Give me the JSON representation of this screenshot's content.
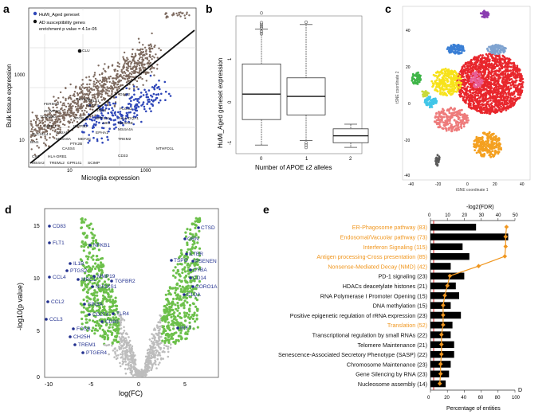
{
  "panels": {
    "a": {
      "letter": "a",
      "legend": [
        "HuMi_Aged geneset",
        "AD susceptibility genes",
        "enrichment p value = 4.1e-05"
      ],
      "ylabel": "Bulk tissue expression",
      "xlabel": "Microglia expression",
      "xticks": [
        "10",
        "1000"
      ],
      "yticks": [
        "1000",
        "10"
      ],
      "genes": [
        "CLU",
        "FERMT2",
        "ZCWPW1",
        "TOMM40",
        "PICALM",
        "CELF1",
        "ABCA7",
        "SLC24A4",
        "BIN1",
        "SORL1",
        "MS4A6A",
        "CR1",
        "HLA-DRB1",
        "CASS4",
        "CD2AP",
        "MEF2C",
        "INPP5D",
        "APOE",
        "PTK2B",
        "MS4A4E",
        "MS4A2",
        "TREML2",
        "GPR141",
        "SCIMP",
        "CD33",
        "TREM2",
        "MS4A4A",
        "HLA-DQA1",
        "NME8",
        "EPHA1",
        "MTHFD1L",
        "SPPL2A",
        "ABI3",
        "PLCG2",
        "DSG2"
      ],
      "colors": {
        "background": "#7d6a5f",
        "highlight": "#2e46b8",
        "ad": "#111111"
      }
    },
    "b": {
      "letter": "b",
      "ylabel": "HuMi_Aged geneset expression",
      "xlabel": "Number of APOE ε2 alleles",
      "yticks": [
        "1",
        "0",
        "-1"
      ],
      "categories": [
        "0",
        "1",
        "2"
      ]
    },
    "c": {
      "letter": "c",
      "xlabel": "tSNE coordinate 1",
      "ylabel": "tSNE coordinate 2",
      "xticks": [
        "-40",
        "-20",
        "0",
        "20",
        "40"
      ],
      "yticks": [
        "40",
        "20",
        "0",
        "-20",
        "-40"
      ],
      "clusters": [
        {
          "color": "#e8262c"
        },
        {
          "color": "#f4a020"
        },
        {
          "color": "#f7e21a"
        },
        {
          "color": "#3fb548"
        },
        {
          "color": "#3a7fd5"
        },
        {
          "color": "#7fa3d0"
        },
        {
          "color": "#e85f97"
        },
        {
          "color": "#ee7b7b"
        },
        {
          "color": "#41c6e8"
        },
        {
          "color": "#8a3db0"
        },
        {
          "color": "#c9d93b"
        },
        {
          "color": "#5a5a5a"
        }
      ]
    },
    "d": {
      "letter": "d",
      "ylabel": "-log10(p value)",
      "xlabel": "log(FC)",
      "xticks": [
        "-10",
        "-5",
        "0",
        "5"
      ],
      "yticks": [
        "15",
        "10",
        "5",
        "0"
      ],
      "labels_left": [
        "CD83",
        "FLT1",
        "NFKB1",
        "IL1B",
        "PTGS2",
        "CCL4",
        "MRC1",
        "MMP19",
        "TGFBR2",
        "NUCKS1",
        "CCL2",
        "CCL3",
        "SIN3A",
        "CD274",
        "TLR4",
        "CD80",
        "FOSB",
        "CH25H",
        "TREM1",
        "PTGER4"
      ],
      "labels_right": [
        "CTSD",
        "GRN",
        "ILTBR",
        "TSPO",
        "PSENEN",
        "CYBA",
        "CD14",
        "CORO1A",
        "C1QA",
        "IRF7"
      ]
    },
    "e": {
      "letter": "e",
      "top_axis_label": "-log2(FDR)",
      "bottom_axis_label": "Percentage of entities",
      "top_ticks": [
        "0",
        "10",
        "20",
        "30",
        "40",
        "50"
      ],
      "bottom_ticks": [
        "0",
        "20",
        "40",
        "60",
        "80",
        "100"
      ],
      "corner_mark": "D"
    }
  },
  "chart_data": [
    {
      "panel": "b",
      "type": "box",
      "categories": [
        "0",
        "1",
        "2"
      ],
      "xlabel": "Number of APOE ε2 alleles",
      "ylabel": "HuMi_Aged geneset expression",
      "boxes": [
        {
          "category": "0",
          "min": -1.0,
          "q1": -0.45,
          "median": 0.1,
          "q3": 0.75,
          "max": 1.5
        },
        {
          "category": "1",
          "min": -0.9,
          "q1": -0.35,
          "median": 0.05,
          "q3": 0.45,
          "max": 1.6
        },
        {
          "category": "2",
          "min": -1.05,
          "q1": -0.95,
          "median": -0.8,
          "q3": -0.65,
          "max": -0.55
        }
      ]
    },
    {
      "panel": "e",
      "type": "bar",
      "categories": [
        "ER-Phagosome pathway (83)",
        "Endosomal/Vacuolar pathway (73)",
        "Interferon Signaling (115)",
        "Antigen processing-Cross presentation (85)",
        "Nonsense-Mediated Decay (NMD) (42)",
        "PD-1 signaling (23)",
        "HDACs deacetylate histones (21)",
        "RNA Polymerase I Promoter Opening (15)",
        "DNA methylation (15)",
        "Positive epigenetic regulation of rRNA expression (23)",
        "Translation (52)",
        "Transcriptional regulation by small RNAs (22)",
        "Telomere Maintenance (21)",
        "Senescence-Associated Secretory Phenotype (SASP) (22)",
        "Chromosome Maintenance (23)",
        "Gene Silencing by RNA (23)",
        "Nucleosome assembly (14)"
      ],
      "highlighted": [
        true,
        true,
        true,
        true,
        true,
        false,
        false,
        false,
        false,
        false,
        true,
        false,
        false,
        false,
        false,
        false,
        false
      ],
      "series": [
        {
          "values": [
            27,
            46,
            19,
            23,
            12,
            20,
            15,
            17,
            12,
            18,
            13,
            12,
            14,
            14,
            12,
            11,
            9
          ],
          "axis": "top"
        },
        {
          "values": [
            90,
            89,
            89,
            88,
            57,
            23,
            20,
            17,
            15,
            15,
            15,
            13,
            13,
            13,
            12,
            12,
            11
          ],
          "axis": "bottom"
        }
      ],
      "xlim_top": [
        0,
        50
      ],
      "xlim_bottom": [
        0,
        100
      ]
    }
  ]
}
